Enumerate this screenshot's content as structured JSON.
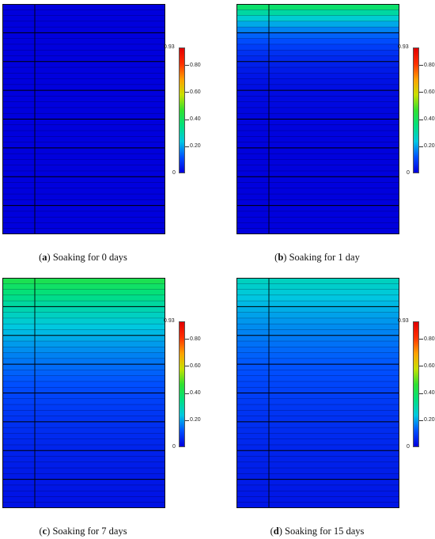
{
  "colorbar": {
    "max_label": "0.93",
    "min_label": "0",
    "ticks": [
      "0.80",
      "0.60",
      "0.40",
      "0.20"
    ],
    "tick_values": [
      0.8,
      0.6,
      0.4,
      0.2
    ],
    "min": 0,
    "max": 0.93,
    "colors": [
      "#0000dd",
      "#0050ff",
      "#00c8e0",
      "#00e080",
      "#30e030",
      "#c8e000",
      "#ffa000",
      "#ff3000",
      "#e00000"
    ]
  },
  "panels": [
    {
      "letter": "a",
      "caption": "Soaking for 0 days",
      "surface_value": 0.0,
      "depth_decay": 0.0
    },
    {
      "letter": "b",
      "caption": "Soaking for 1 day",
      "surface_value": 0.42,
      "depth_decay": 0.12
    },
    {
      "letter": "c",
      "caption": "Soaking for 7 days",
      "surface_value": 0.43,
      "depth_decay": 0.35
    },
    {
      "letter": "d",
      "caption": "Soaking for 15 days",
      "surface_value": 0.28,
      "depth_decay": 0.45
    }
  ],
  "grid": {
    "rows": 40,
    "highlight_every": 5
  }
}
